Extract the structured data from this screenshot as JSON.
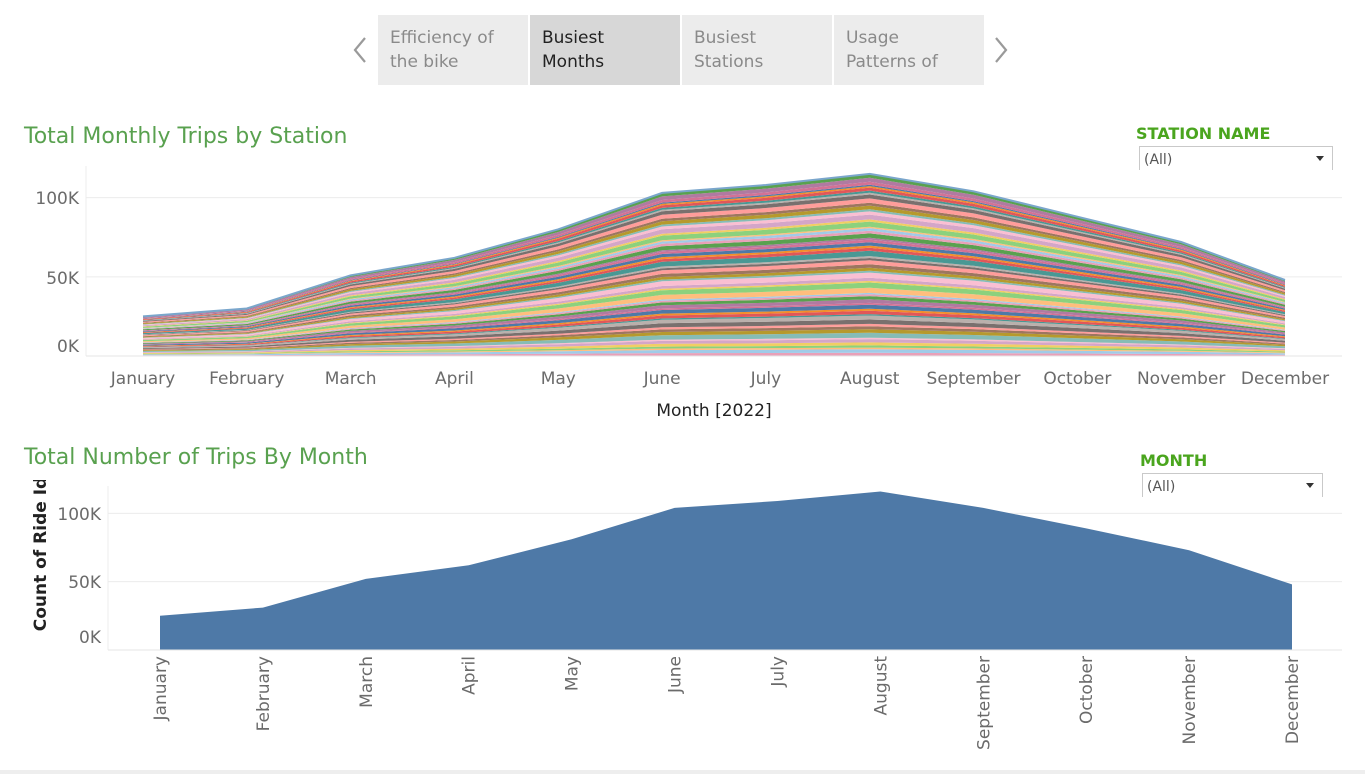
{
  "story": {
    "tabs": [
      {
        "line1": "Efficiency of",
        "line2": "the bike",
        "active": false
      },
      {
        "line1": "Busiest",
        "line2": "Months",
        "active": true
      },
      {
        "line1": "Busiest",
        "line2": "Stations",
        "active": false
      },
      {
        "line1": "Usage",
        "line2": "Patterns of",
        "active": false
      }
    ]
  },
  "filters": {
    "station": {
      "label": "STATION NAME",
      "value": "(All)"
    },
    "month": {
      "label": "MONTH",
      "value": "(All)"
    }
  },
  "colors": {
    "title": "#59a14f",
    "filter_label": "#4aa51e",
    "area": "#4e79a7",
    "station_palette": [
      "#e8a0b8",
      "#a0cbe8",
      "#ffbe7d",
      "#8cd17d",
      "#f1ce63",
      "#d4a6c8",
      "#fabfd2",
      "#86bcb6",
      "#b6992d",
      "#9d7660",
      "#ff9d9a",
      "#79706e",
      "#bab0ac",
      "#499894",
      "#e15759",
      "#f28e2b",
      "#4e79a7",
      "#d37295",
      "#b07aa1",
      "#59a14f"
    ]
  },
  "chart_data": [
    {
      "type": "area",
      "stacked": true,
      "title": "Total Monthly Trips by Station",
      "xlabel": "Month [2022]",
      "ylabel": "",
      "categories": [
        "January",
        "February",
        "March",
        "April",
        "May",
        "June",
        "July",
        "August",
        "September",
        "October",
        "November",
        "December"
      ],
      "totals": [
        25000,
        30000,
        51000,
        62000,
        80000,
        103000,
        108000,
        115000,
        104000,
        88000,
        72000,
        48000
      ],
      "yticks": [
        0,
        50000,
        100000
      ],
      "ytick_labels": [
        "0K",
        "50K",
        "100K"
      ],
      "ylim": [
        0,
        120000
      ],
      "grid": true,
      "legend": "none"
    },
    {
      "type": "area",
      "title": "Total Number of Trips  By Month",
      "xlabel": "",
      "ylabel": "Count of Ride Id",
      "categories": [
        "January",
        "February",
        "March",
        "April",
        "May",
        "June",
        "July",
        "August",
        "September",
        "October",
        "November",
        "December"
      ],
      "values": [
        25000,
        31000,
        52000,
        62000,
        81000,
        104000,
        109000,
        116000,
        104000,
        89000,
        73000,
        48000
      ],
      "yticks": [
        0,
        50000,
        100000
      ],
      "ytick_labels": [
        "0K",
        "50K",
        "100K"
      ],
      "ylim": [
        0,
        120000
      ],
      "grid": true,
      "legend": "none"
    }
  ]
}
